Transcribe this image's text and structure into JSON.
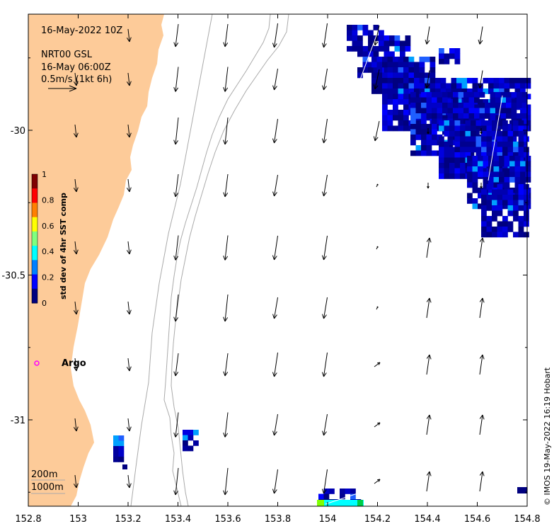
{
  "header": {
    "date_line": "16-May-2022 10Z",
    "model_line": "NRT00 GSL",
    "model_time": "16-May 06:00Z",
    "scale_label": "0.5m/s (1kt 6h)"
  },
  "x_axis": {
    "ticks": [
      "152.8",
      "153",
      "153.2",
      "153.4",
      "153.6",
      "153.8",
      "154",
      "154.2",
      "154.4",
      "154.6",
      "154.8"
    ],
    "values": [
      152.8,
      153.0,
      153.2,
      153.4,
      153.6,
      153.8,
      154.0,
      154.2,
      154.4,
      154.6,
      154.8
    ]
  },
  "y_axis": {
    "ticks": [
      "-30",
      "-30.5",
      "-31"
    ],
    "values": [
      -30.0,
      -30.5,
      -31.0
    ]
  },
  "colorbar": {
    "title": "std dev of 4hr SST comp",
    "ticks": [
      "0",
      "0.2",
      "0.4",
      "0.6",
      "0.8",
      "1"
    ],
    "colors": [
      "#00007f",
      "#0000ff",
      "#007fff",
      "#00ffff",
      "#7fff7f",
      "#ffff00",
      "#ff7f00",
      "#ff0000",
      "#7f0000"
    ]
  },
  "argo": {
    "label": "Argo",
    "color": "#ff00ff",
    "lon": 152.83,
    "lat": -30.81
  },
  "isobaths": {
    "label_200": "200m",
    "label_1000": "1000m"
  },
  "credit": "© IMOS 19-May-2022 16:19 Hobart",
  "colors": {
    "land": "#fdcb99",
    "sst_low": "#00007f",
    "sst_mid": "#0000cd",
    "isobath": "#aaaaaa"
  }
}
